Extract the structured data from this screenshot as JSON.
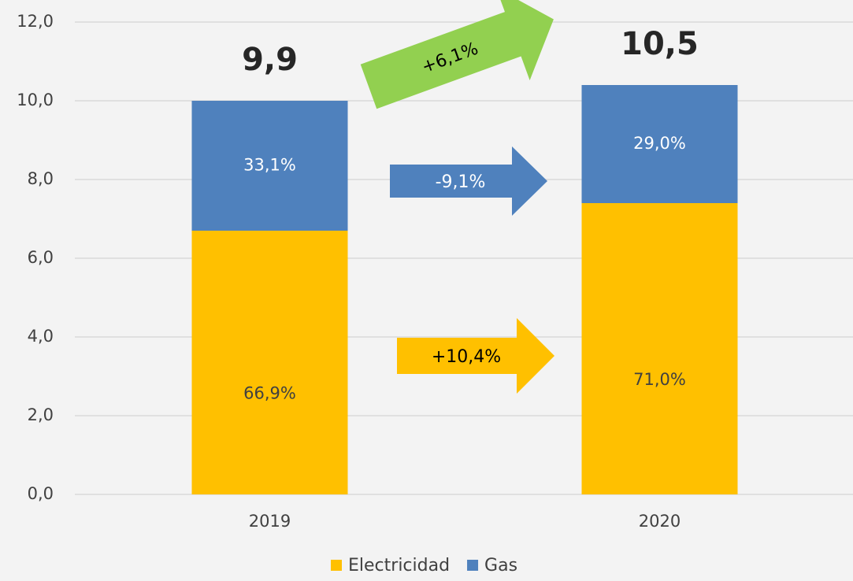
{
  "chart_data": {
    "type": "stacked_bar",
    "categories": [
      "2019",
      "2020"
    ],
    "series": [
      {
        "name": "Electricidad",
        "color": "#ffc000",
        "values": [
          6.7,
          7.4
        ],
        "labels": [
          "66,9%",
          "71,0%"
        ]
      },
      {
        "name": "Gas",
        "color": "#4f81bd",
        "values": [
          3.3,
          3.0
        ],
        "labels": [
          "33,1%",
          "29,0%"
        ]
      }
    ],
    "total_labels": [
      "9,9",
      "10,5"
    ],
    "annotations": [
      {
        "text": "+6,1%",
        "color": "#92d050"
      },
      {
        "text": "-9,1%",
        "color": "#4f81bd"
      },
      {
        "text": "+10,4%",
        "color": "#ffc000"
      }
    ],
    "ylim": [
      0,
      12
    ],
    "yticks": [
      {
        "value": 0,
        "label": "0,0"
      },
      {
        "value": 2,
        "label": "2,0"
      },
      {
        "value": 4,
        "label": "4,0"
      },
      {
        "value": 6,
        "label": "6,0"
      },
      {
        "value": 8,
        "label": "8,0"
      },
      {
        "value": 10,
        "label": "10,0"
      },
      {
        "value": 12,
        "label": "12,0"
      }
    ],
    "grid": true,
    "legend": "bottom"
  }
}
